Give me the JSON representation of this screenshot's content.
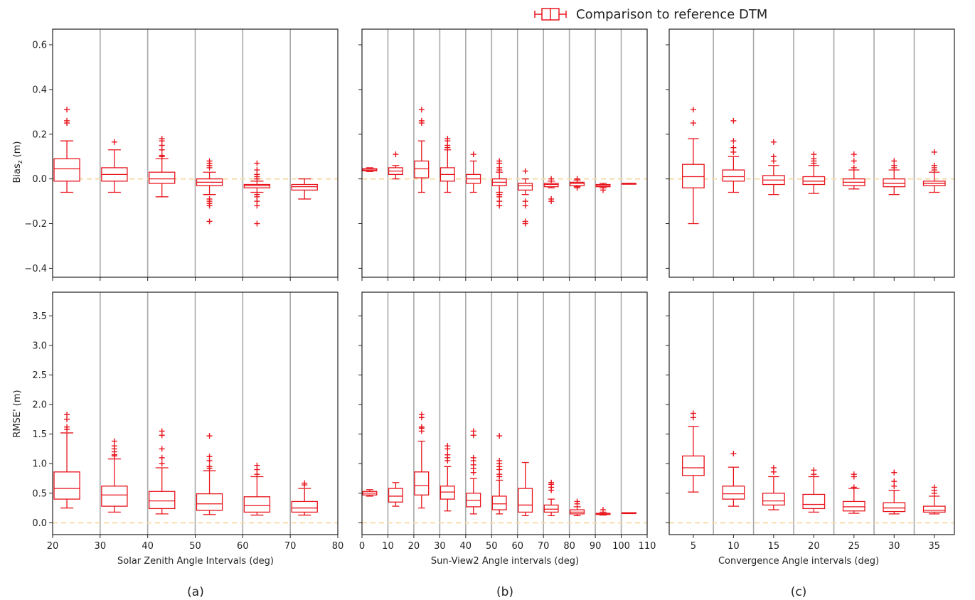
{
  "legend": {
    "label": "Comparison to reference DTM"
  },
  "colors": {
    "box": "#e8141c",
    "grid": "#a8a8a8",
    "zero": "#f3dfae",
    "axis": "#222222"
  },
  "chart_data": [
    {
      "type": "box",
      "panel": "(a)",
      "xlabel": "Solar Zenith Angle Intervals (deg)",
      "ylabel_top": "Bias_z (m)",
      "ylabel_bottom": "RMSE' (m)",
      "xlim": [
        20,
        80
      ],
      "xticks": [
        20,
        30,
        40,
        50,
        60,
        70,
        80
      ],
      "vlines": [
        30,
        40,
        50,
        60,
        70
      ],
      "bias": {
        "ylim": [
          -0.44,
          0.67
        ],
        "yticks": [
          -0.4,
          -0.2,
          0.0,
          0.2,
          0.4,
          0.6
        ],
        "boxes": [
          {
            "x": 23,
            "whislo": -0.06,
            "q1": -0.01,
            "med": 0.045,
            "q3": 0.09,
            "whishi": 0.17,
            "fliers": [
              0.25,
              0.26,
              0.31
            ]
          },
          {
            "x": 33,
            "whislo": -0.06,
            "q1": -0.01,
            "med": 0.02,
            "q3": 0.05,
            "whishi": 0.13,
            "fliers": [
              0.165
            ]
          },
          {
            "x": 43,
            "whislo": -0.08,
            "q1": -0.02,
            "med": 0.0,
            "q3": 0.03,
            "whishi": 0.09,
            "fliers": [
              0.1,
              0.105,
              0.13,
              0.15,
              0.17,
              0.18
            ]
          },
          {
            "x": 53,
            "whislo": -0.07,
            "q1": -0.03,
            "med": -0.015,
            "q3": 0.0,
            "whishi": 0.03,
            "fliers": [
              0.05,
              0.06,
              0.07,
              0.08,
              -0.09,
              -0.1,
              -0.11,
              -0.12,
              -0.19
            ]
          },
          {
            "x": 63,
            "whislo": -0.06,
            "q1": -0.04,
            "med": -0.03,
            "q3": -0.025,
            "whishi": -0.01,
            "fliers": [
              0.0,
              0.01,
              0.02,
              0.04,
              0.07,
              -0.07,
              -0.08,
              -0.1,
              -0.12,
              -0.2
            ]
          },
          {
            "x": 73,
            "whislo": -0.09,
            "q1": -0.05,
            "med": -0.035,
            "q3": -0.025,
            "whishi": 0.0,
            "fliers": []
          }
        ]
      },
      "rmse": {
        "ylim": [
          -0.2,
          3.9
        ],
        "yticks": [
          0.0,
          0.5,
          1.0,
          1.5,
          2.0,
          2.5,
          3.0,
          3.5
        ],
        "boxes": [
          {
            "x": 23,
            "whislo": 0.25,
            "q1": 0.4,
            "med": 0.58,
            "q3": 0.86,
            "whishi": 1.52,
            "fliers": [
              1.58,
              1.62,
              1.75,
              1.83
            ]
          },
          {
            "x": 33,
            "whislo": 0.18,
            "q1": 0.28,
            "med": 0.47,
            "q3": 0.62,
            "whishi": 1.08,
            "fliers": [
              1.13,
              1.15,
              1.2,
              1.25,
              1.3,
              1.38
            ]
          },
          {
            "x": 43,
            "whislo": 0.15,
            "q1": 0.24,
            "med": 0.37,
            "q3": 0.53,
            "whishi": 0.93,
            "fliers": [
              1.0,
              1.1,
              1.25,
              1.48,
              1.55
            ]
          },
          {
            "x": 53,
            "whislo": 0.14,
            "q1": 0.21,
            "med": 0.32,
            "q3": 0.49,
            "whishi": 0.88,
            "fliers": [
              0.92,
              0.95,
              1.05,
              1.12,
              1.47
            ]
          },
          {
            "x": 63,
            "whislo": 0.13,
            "q1": 0.18,
            "med": 0.29,
            "q3": 0.44,
            "whishi": 0.78,
            "fliers": [
              0.82,
              0.9,
              0.97
            ]
          },
          {
            "x": 73,
            "whislo": 0.13,
            "q1": 0.18,
            "med": 0.25,
            "q3": 0.36,
            "whishi": 0.58,
            "fliers": [
              0.64,
              0.67
            ]
          }
        ]
      }
    },
    {
      "type": "box",
      "panel": "(b)",
      "xlabel": "Sun-View2 Angle intervals (deg)",
      "xlim": [
        0,
        110
      ],
      "xticks": [
        0,
        10,
        20,
        30,
        40,
        50,
        60,
        70,
        80,
        90,
        100,
        110
      ],
      "vlines": [
        10,
        20,
        30,
        40,
        50,
        60,
        70,
        80,
        90,
        100
      ],
      "bias": {
        "ylim": [
          -0.44,
          0.67
        ],
        "boxes": [
          {
            "x": 3,
            "whislo": 0.033,
            "q1": 0.036,
            "med": 0.04,
            "q3": 0.046,
            "whishi": 0.05,
            "fliers": []
          },
          {
            "x": 13,
            "whislo": 0.0,
            "q1": 0.02,
            "med": 0.035,
            "q3": 0.05,
            "whishi": 0.06,
            "fliers": [
              0.11
            ]
          },
          {
            "x": 23,
            "whislo": -0.06,
            "q1": 0.005,
            "med": 0.045,
            "q3": 0.08,
            "whishi": 0.17,
            "fliers": [
              0.25,
              0.26,
              0.31
            ]
          },
          {
            "x": 33,
            "whislo": -0.06,
            "q1": -0.01,
            "med": 0.02,
            "q3": 0.05,
            "whishi": 0.13,
            "fliers": [
              0.14,
              0.15,
              0.17,
              0.18
            ]
          },
          {
            "x": 43,
            "whislo": -0.06,
            "q1": -0.02,
            "med": 0.0,
            "q3": 0.02,
            "whishi": 0.08,
            "fliers": [
              0.11
            ]
          },
          {
            "x": 53,
            "whislo": -0.06,
            "q1": -0.03,
            "med": -0.015,
            "q3": 0.0,
            "whishi": 0.03,
            "fliers": [
              0.04,
              0.05,
              0.07,
              0.08,
              -0.07,
              -0.08,
              -0.1,
              -0.12
            ]
          },
          {
            "x": 63,
            "whislo": -0.07,
            "q1": -0.05,
            "med": -0.03,
            "q3": -0.02,
            "whishi": 0.0,
            "fliers": [
              0.035,
              -0.1,
              -0.12,
              -0.19,
              -0.2
            ]
          },
          {
            "x": 73,
            "whislo": -0.04,
            "q1": -0.035,
            "med": -0.025,
            "q3": -0.02,
            "whishi": -0.01,
            "fliers": [
              0.0,
              -0.09,
              -0.1
            ]
          },
          {
            "x": 83,
            "whislo": -0.035,
            "q1": -0.03,
            "med": -0.02,
            "q3": -0.015,
            "whishi": -0.005,
            "fliers": [
              0.0,
              -0.04
            ]
          },
          {
            "x": 93,
            "whislo": -0.04,
            "q1": -0.035,
            "med": -0.03,
            "q3": -0.025,
            "whishi": -0.02,
            "fliers": [
              -0.05
            ]
          },
          {
            "x": 103,
            "whislo": -0.02,
            "q1": -0.02,
            "med": -0.02,
            "q3": -0.02,
            "whishi": -0.02,
            "fliers": []
          }
        ]
      },
      "rmse": {
        "ylim": [
          -0.2,
          3.9
        ],
        "boxes": [
          {
            "x": 3,
            "whislo": 0.45,
            "q1": 0.47,
            "med": 0.5,
            "q3": 0.53,
            "whishi": 0.56,
            "fliers": []
          },
          {
            "x": 13,
            "whislo": 0.28,
            "q1": 0.35,
            "med": 0.45,
            "q3": 0.58,
            "whishi": 0.68,
            "fliers": []
          },
          {
            "x": 23,
            "whislo": 0.25,
            "q1": 0.47,
            "med": 0.63,
            "q3": 0.86,
            "whishi": 1.38,
            "fliers": [
              1.55,
              1.6,
              1.62,
              1.78,
              1.83
            ]
          },
          {
            "x": 33,
            "whislo": 0.2,
            "q1": 0.4,
            "med": 0.52,
            "q3": 0.62,
            "whishi": 0.95,
            "fliers": [
              1.05,
              1.1,
              1.15,
              1.25,
              1.3
            ]
          },
          {
            "x": 43,
            "whislo": 0.15,
            "q1": 0.27,
            "med": 0.38,
            "q3": 0.5,
            "whishi": 0.75,
            "fliers": [
              0.85,
              0.92,
              0.98,
              1.05,
              1.1,
              1.48,
              1.55
            ]
          },
          {
            "x": 53,
            "whislo": 0.15,
            "q1": 0.22,
            "med": 0.32,
            "q3": 0.45,
            "whishi": 0.72,
            "fliers": [
              0.78,
              0.82,
              0.9,
              0.95,
              1.0,
              1.05,
              1.47
            ]
          },
          {
            "x": 63,
            "whislo": 0.12,
            "q1": 0.18,
            "med": 0.3,
            "q3": 0.58,
            "whishi": 1.02,
            "fliers": []
          },
          {
            "x": 73,
            "whislo": 0.12,
            "q1": 0.18,
            "med": 0.23,
            "q3": 0.3,
            "whishi": 0.4,
            "fliers": [
              0.55,
              0.6,
              0.65,
              0.68
            ]
          },
          {
            "x": 83,
            "whislo": 0.12,
            "q1": 0.15,
            "med": 0.18,
            "q3": 0.22,
            "whishi": 0.27,
            "fliers": [
              0.32,
              0.36
            ]
          },
          {
            "x": 93,
            "whislo": 0.13,
            "q1": 0.14,
            "med": 0.15,
            "q3": 0.16,
            "whishi": 0.18,
            "fliers": [
              0.22
            ]
          },
          {
            "x": 103,
            "whislo": 0.17,
            "q1": 0.17,
            "med": 0.17,
            "q3": 0.17,
            "whishi": 0.17,
            "fliers": []
          }
        ]
      }
    },
    {
      "type": "box",
      "panel": "(c)",
      "xlabel": "Convergence Angle intervals (deg)",
      "xlim": [
        2,
        37.5
      ],
      "xticks": [
        5,
        10,
        15,
        20,
        25,
        30,
        35
      ],
      "vlines": [
        7.5,
        12.5,
        17.5,
        22.5,
        27.5,
        32.5
      ],
      "bias": {
        "ylim": [
          -0.44,
          0.67
        ],
        "boxes": [
          {
            "x": 5,
            "whislo": -0.2,
            "q1": -0.04,
            "med": 0.01,
            "q3": 0.065,
            "whishi": 0.18,
            "fliers": [
              0.25,
              0.31
            ]
          },
          {
            "x": 10,
            "whislo": -0.06,
            "q1": -0.01,
            "med": 0.01,
            "q3": 0.04,
            "whishi": 0.1,
            "fliers": [
              0.12,
              0.14,
              0.17,
              0.26
            ]
          },
          {
            "x": 15,
            "whislo": -0.07,
            "q1": -0.025,
            "med": -0.005,
            "q3": 0.015,
            "whishi": 0.06,
            "fliers": [
              0.08,
              0.1,
              0.165
            ]
          },
          {
            "x": 20,
            "whislo": -0.065,
            "q1": -0.025,
            "med": -0.01,
            "q3": 0.01,
            "whishi": 0.06,
            "fliers": [
              0.07,
              0.08,
              0.09,
              0.11
            ]
          },
          {
            "x": 25,
            "whislo": -0.045,
            "q1": -0.03,
            "med": -0.015,
            "q3": 0.0,
            "whishi": 0.04,
            "fliers": [
              0.05,
              0.08,
              0.11
            ]
          },
          {
            "x": 30,
            "whislo": -0.07,
            "q1": -0.035,
            "med": -0.02,
            "q3": 0.0,
            "whishi": 0.04,
            "fliers": [
              0.05,
              0.06,
              0.08
            ]
          },
          {
            "x": 35,
            "whislo": -0.06,
            "q1": -0.03,
            "med": -0.02,
            "q3": -0.01,
            "whishi": 0.03,
            "fliers": [
              0.04,
              0.05,
              0.06,
              0.12
            ]
          }
        ]
      },
      "rmse": {
        "ylim": [
          -0.2,
          3.9
        ],
        "boxes": [
          {
            "x": 5,
            "whislo": 0.52,
            "q1": 0.8,
            "med": 0.93,
            "q3": 1.13,
            "whishi": 1.63,
            "fliers": [
              1.78,
              1.85
            ]
          },
          {
            "x": 10,
            "whislo": 0.28,
            "q1": 0.4,
            "med": 0.49,
            "q3": 0.62,
            "whishi": 0.94,
            "fliers": [
              1.17
            ]
          },
          {
            "x": 15,
            "whislo": 0.22,
            "q1": 0.3,
            "med": 0.37,
            "q3": 0.5,
            "whishi": 0.78,
            "fliers": [
              0.86,
              0.93
            ]
          },
          {
            "x": 20,
            "whislo": 0.18,
            "q1": 0.24,
            "med": 0.31,
            "q3": 0.48,
            "whishi": 0.78,
            "fliers": [
              0.82,
              0.89
            ]
          },
          {
            "x": 25,
            "whislo": 0.16,
            "q1": 0.2,
            "med": 0.27,
            "q3": 0.36,
            "whishi": 0.58,
            "fliers": [
              0.6,
              0.78,
              0.82
            ]
          },
          {
            "x": 30,
            "whislo": 0.15,
            "q1": 0.19,
            "med": 0.25,
            "q3": 0.34,
            "whishi": 0.55,
            "fliers": [
              0.62,
              0.7,
              0.85
            ]
          },
          {
            "x": 35,
            "whislo": 0.15,
            "q1": 0.18,
            "med": 0.21,
            "q3": 0.28,
            "whishi": 0.45,
            "fliers": [
              0.5,
              0.55,
              0.6
            ]
          }
        ]
      }
    }
  ]
}
